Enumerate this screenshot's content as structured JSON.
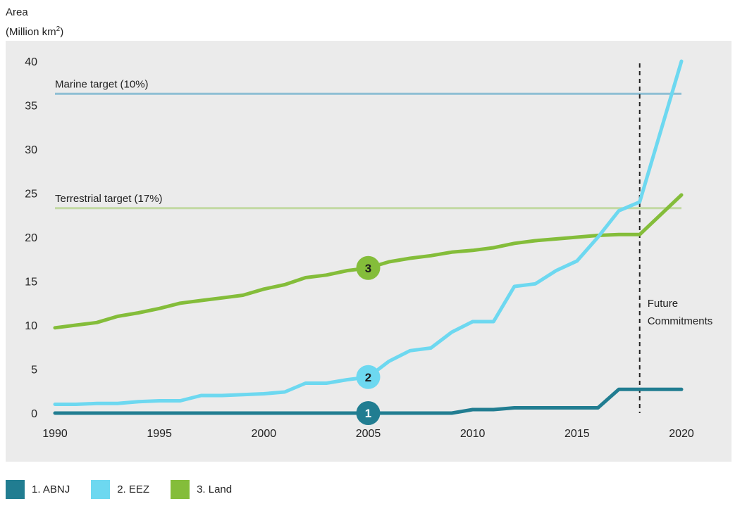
{
  "chart_data": {
    "type": "line",
    "ylabel_line1": "Area",
    "ylabel_line2_prefix": "(Million km",
    "ylabel_sup": "2",
    "ylabel_line2_suffix": ")",
    "xlim": [
      1990,
      2020
    ],
    "ylim": [
      0,
      40
    ],
    "x_ticks": [
      1990,
      1995,
      2000,
      2005,
      2010,
      2015,
      2020
    ],
    "y_ticks": [
      0,
      5,
      10,
      15,
      20,
      25,
      30,
      35,
      40
    ],
    "grid": false,
    "legend_position": "bottom-left",
    "series": [
      {
        "name": "1. ABNJ",
        "marker_label": "1",
        "marker_x": 2005,
        "color": "#217d91",
        "x": [
          1990,
          1995,
          2000,
          2005,
          2009,
          2010,
          2011,
          2012,
          2013,
          2014,
          2015,
          2016,
          2017,
          2018,
          2020
        ],
        "y": [
          0,
          0,
          0,
          0,
          0,
          0.4,
          0.4,
          0.6,
          0.6,
          0.6,
          0.6,
          0.6,
          2.7,
          2.7,
          2.7
        ]
      },
      {
        "name": "2. EEZ",
        "marker_label": "2",
        "marker_x": 2005,
        "color": "#6dd8f0",
        "x": [
          1990,
          1991,
          1992,
          1993,
          1994,
          1995,
          1996,
          1997,
          1998,
          1999,
          2000,
          2001,
          2002,
          2003,
          2004,
          2005,
          2006,
          2007,
          2008,
          2009,
          2010,
          2011,
          2012,
          2013,
          2014,
          2015,
          2016,
          2017,
          2018,
          2020
        ],
        "y": [
          1.0,
          1.0,
          1.1,
          1.1,
          1.3,
          1.4,
          1.4,
          2.0,
          2.0,
          2.1,
          2.2,
          2.4,
          3.4,
          3.4,
          3.8,
          4.1,
          5.9,
          7.1,
          7.4,
          9.2,
          10.4,
          10.4,
          14.4,
          14.7,
          16.2,
          17.3,
          20.0,
          23.0,
          24.0,
          40.0
        ]
      },
      {
        "name": "3. Land",
        "marker_label": "3",
        "marker_x": 2005,
        "color": "#84bd3a",
        "x": [
          1990,
          1991,
          1992,
          1993,
          1994,
          1995,
          1996,
          1997,
          1998,
          1999,
          2000,
          2001,
          2002,
          2003,
          2004,
          2005,
          2006,
          2007,
          2008,
          2009,
          2010,
          2011,
          2012,
          2013,
          2014,
          2015,
          2016,
          2017,
          2018,
          2020
        ],
        "y": [
          9.7,
          10.0,
          10.3,
          11.0,
          11.4,
          11.9,
          12.5,
          12.8,
          13.1,
          13.4,
          14.1,
          14.6,
          15.4,
          15.7,
          16.2,
          16.5,
          17.2,
          17.6,
          17.9,
          18.3,
          18.5,
          18.8,
          19.3,
          19.6,
          19.8,
          20.0,
          20.2,
          20.3,
          20.3,
          24.8
        ]
      }
    ],
    "reference_lines": [
      {
        "label": "Marine target (10%)",
        "y": 36.3,
        "color": "#8fbfd4"
      },
      {
        "label": "Terrestrial target (17%)",
        "y": 23.3,
        "color": "#c2d9a3"
      }
    ],
    "divider": {
      "x": 2018,
      "label_line1": "Future",
      "label_line2": "Commitments"
    }
  }
}
